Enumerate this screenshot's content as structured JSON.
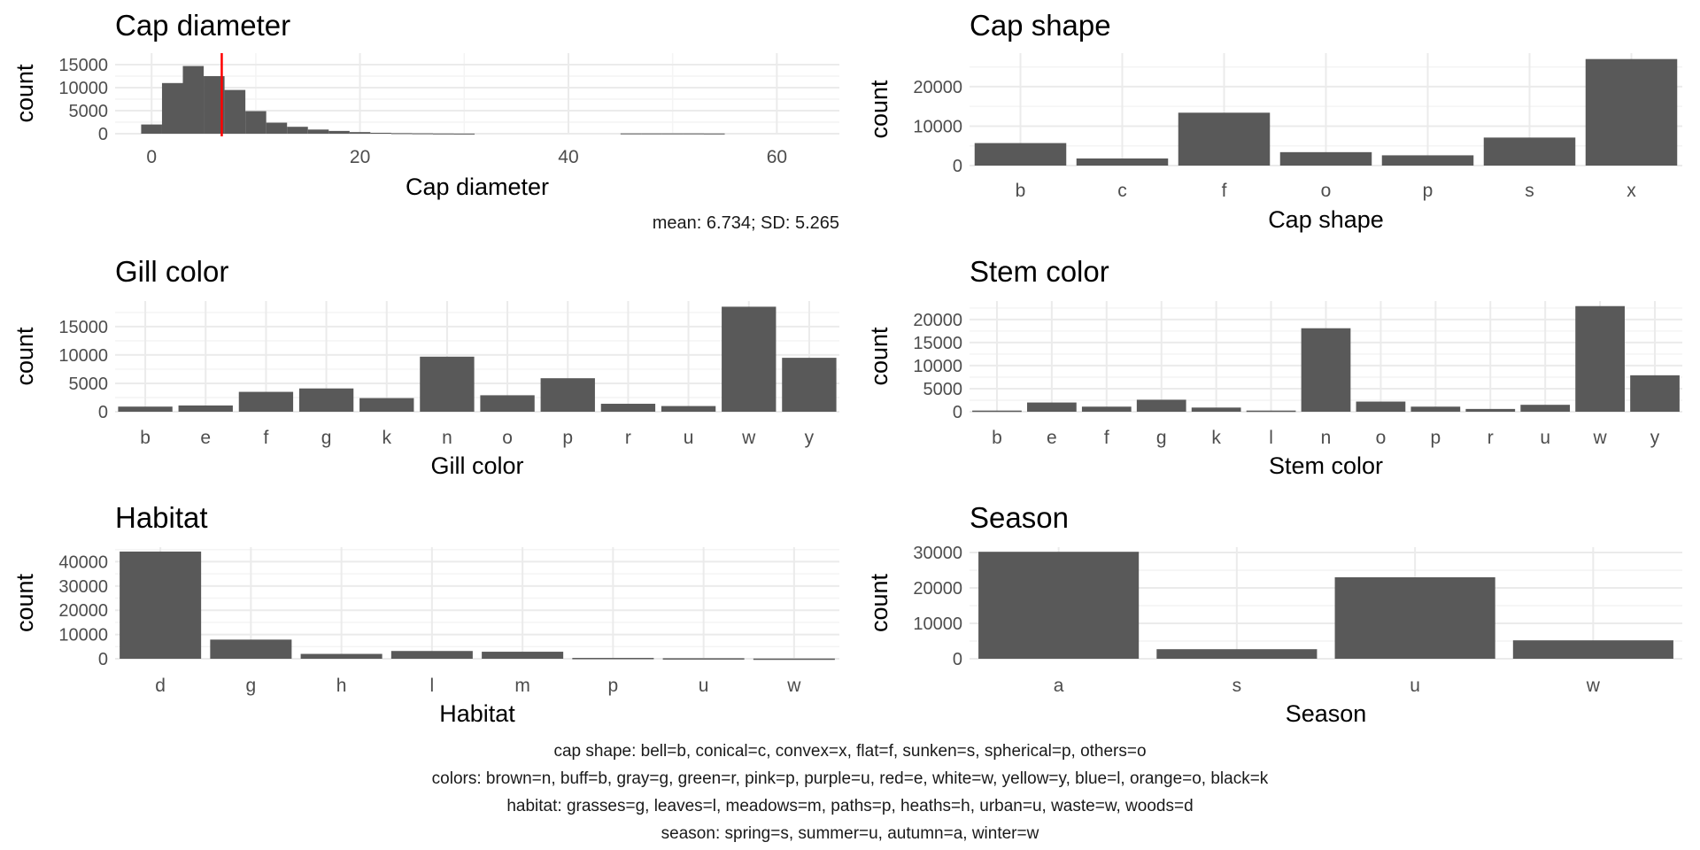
{
  "chart_data": [
    {
      "type": "bar",
      "subtype": "histogram",
      "title": "Cap diameter",
      "xlabel": "Cap diameter",
      "ylabel": "count",
      "xlim": [
        -3.5,
        66
      ],
      "ylim": [
        0,
        17500
      ],
      "xticks": [
        0,
        20,
        40,
        60
      ],
      "yticks": [
        0,
        5000,
        10000,
        15000
      ],
      "bin_width": 2,
      "bins": [
        {
          "x0": -1,
          "x1": 1,
          "value": 2000
        },
        {
          "x0": 1,
          "x1": 3,
          "value": 11000
        },
        {
          "x0": 3,
          "x1": 5,
          "value": 14700
        },
        {
          "x0": 5,
          "x1": 7,
          "value": 12500
        },
        {
          "x0": 7,
          "x1": 9,
          "value": 9500
        },
        {
          "x0": 9,
          "x1": 11,
          "value": 4900
        },
        {
          "x0": 11,
          "x1": 13,
          "value": 2400
        },
        {
          "x0": 13,
          "x1": 15,
          "value": 1500
        },
        {
          "x0": 15,
          "x1": 17,
          "value": 900
        },
        {
          "x0": 17,
          "x1": 19,
          "value": 600
        },
        {
          "x0": 19,
          "x1": 21,
          "value": 350
        },
        {
          "x0": 21,
          "x1": 23,
          "value": 200
        },
        {
          "x0": 23,
          "x1": 25,
          "value": 120
        },
        {
          "x0": 25,
          "x1": 27,
          "value": 80
        },
        {
          "x0": 27,
          "x1": 29,
          "value": 40
        },
        {
          "x0": 29,
          "x1": 31,
          "value": 20
        },
        {
          "x0": 45,
          "x1": 47,
          "value": 60
        },
        {
          "x0": 47,
          "x1": 49,
          "value": 60
        },
        {
          "x0": 49,
          "x1": 51,
          "value": 60
        },
        {
          "x0": 51,
          "x1": 53,
          "value": 60
        },
        {
          "x0": 53,
          "x1": 55,
          "value": 40
        }
      ],
      "mean_line": 6.734,
      "mean_line_color": "#ff0000",
      "annotation": "mean: 6.734; SD: 5.265",
      "bar_color": "#595959",
      "grid": true
    },
    {
      "type": "bar",
      "title": "Cap shape",
      "xlabel": "Cap shape",
      "ylabel": "count",
      "categories": [
        "b",
        "c",
        "f",
        "o",
        "p",
        "s",
        "x"
      ],
      "values": [
        5700,
        1800,
        13400,
        3400,
        2600,
        7100,
        27000
      ],
      "ylim": [
        0,
        28500
      ],
      "yticks": [
        0,
        10000,
        20000
      ],
      "bar_color": "#595959",
      "grid": true
    },
    {
      "type": "bar",
      "title": "Gill color",
      "xlabel": "Gill color",
      "ylabel": "count",
      "categories": [
        "b",
        "e",
        "f",
        "g",
        "k",
        "n",
        "o",
        "p",
        "r",
        "u",
        "w",
        "y"
      ],
      "values": [
        900,
        1100,
        3500,
        4100,
        2400,
        9700,
        2900,
        5900,
        1400,
        1000,
        18500,
        9500
      ],
      "ylim": [
        0,
        19500
      ],
      "yticks": [
        0,
        5000,
        10000,
        15000
      ],
      "bar_color": "#595959",
      "grid": true
    },
    {
      "type": "bar",
      "title": "Stem color",
      "xlabel": "Stem color",
      "ylabel": "count",
      "categories": [
        "b",
        "e",
        "f",
        "g",
        "k",
        "l",
        "n",
        "o",
        "p",
        "r",
        "u",
        "w",
        "y"
      ],
      "values": [
        250,
        2000,
        1100,
        2600,
        900,
        250,
        18100,
        2200,
        1100,
        600,
        1500,
        22900,
        7900
      ],
      "ylim": [
        0,
        24000
      ],
      "yticks": [
        0,
        5000,
        10000,
        15000,
        20000
      ],
      "bar_color": "#595959",
      "grid": true
    },
    {
      "type": "bar",
      "title": "Habitat",
      "xlabel": "Habitat",
      "ylabel": "count",
      "categories": [
        "d",
        "g",
        "h",
        "l",
        "m",
        "p",
        "u",
        "w"
      ],
      "values": [
        44200,
        7900,
        2000,
        3200,
        2900,
        350,
        200,
        90
      ],
      "ylim": [
        0,
        46000
      ],
      "yticks": [
        0,
        10000,
        20000,
        30000,
        40000
      ],
      "bar_color": "#595959",
      "grid": true
    },
    {
      "type": "bar",
      "title": "Season",
      "xlabel": "Season",
      "ylabel": "count",
      "categories": [
        "a",
        "s",
        "u",
        "w"
      ],
      "values": [
        30200,
        2700,
        23000,
        5200
      ],
      "ylim": [
        0,
        31500
      ],
      "yticks": [
        0,
        10000,
        20000,
        30000
      ],
      "bar_color": "#595959",
      "grid": true
    }
  ],
  "captions": [
    "cap shape: bell=b, conical=c, convex=x, flat=f, sunken=s, spherical=p, others=o",
    "colors: brown=n, buff=b, gray=g, green=r, pink=p, purple=u, red=e, white=w, yellow=y, blue=l, orange=o, black=k",
    "habitat: grasses=g, leaves=l, meadows=m, paths=p, heaths=h, urban=u, waste=w, woods=d",
    "season: spring=s, summer=u, autumn=a, winter=w"
  ],
  "colors": {
    "bar": "#595959",
    "grid_major": "#ebebeb",
    "grid_minor": "#f4f4f4",
    "text": "#1a1a1a",
    "tick_text": "#4d4d4d",
    "mean_line": "#ff0000"
  }
}
